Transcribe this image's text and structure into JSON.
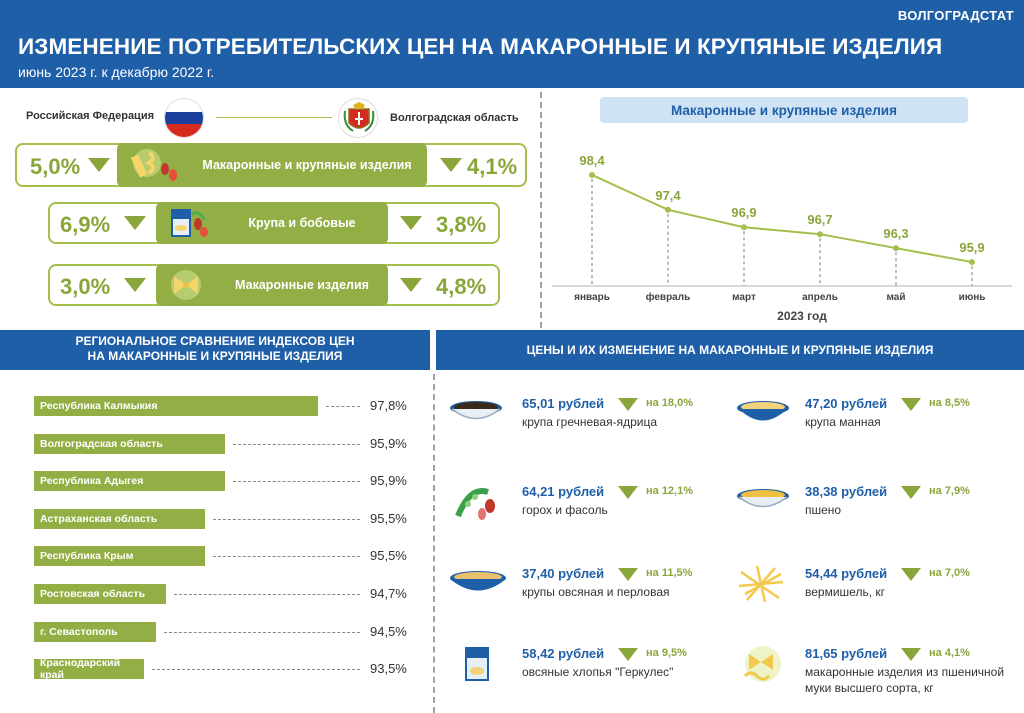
{
  "header": {
    "brand": "ВОЛГОГРАДСТАТ",
    "title": "ИЗМЕНЕНИЕ ПОТРЕБИТЕЛЬСКИХ ЦЕН НА МАКАРОННЫЕ И КРУПЯНЫЕ ИЗДЕЛИЯ",
    "subtitle": "июнь 2023 г. к декабрю 2022 г."
  },
  "comparison": {
    "left_label": "Российская Федерация",
    "right_label": "Волгоградская  область",
    "rows": [
      {
        "category": "Макаронные и крупяные изделия",
        "rf": "5,0%",
        "region": "4,1%"
      },
      {
        "category": "Крупа и бобовые",
        "rf": "6,9%",
        "region": "3,8%"
      },
      {
        "category": "Макаронные изделия",
        "rf": "3,0%",
        "region": "4,8%"
      }
    ]
  },
  "chart_data": [
    {
      "type": "line",
      "title": "Макаронные и крупяные изделия",
      "xlabel": "2023 год",
      "ylabel": "",
      "categories": [
        "январь",
        "февраль",
        "март",
        "апрель",
        "май",
        "июнь"
      ],
      "values": [
        98.4,
        97.4,
        96.9,
        96.7,
        96.3,
        95.9
      ],
      "value_labels": [
        "98,4",
        "97,4",
        "96,9",
        "96,7",
        "96,3",
        "95,9"
      ],
      "ylim": [
        95.5,
        98.6
      ],
      "color": "#a3bf4d"
    },
    {
      "type": "bar",
      "orientation": "horizontal",
      "title": "РЕГИОНАЛЬНОЕ  СРАВНЕНИЕ  ИНДЕКСОВ ЦЕН НА МАКАРОННЫЕ  И КРУПЯНЫЕ  ИЗДЕЛИЯ",
      "categories": [
        "Республика Калмыкия",
        "Волгоградская область",
        "Республика Адыгея",
        "Астраханская область",
        "Республика Крым",
        "Ростовская область",
        "г. Севастополь",
        "Краснодарский край"
      ],
      "values": [
        97.8,
        95.9,
        95.9,
        95.5,
        95.5,
        94.7,
        94.5,
        93.5
      ],
      "value_labels": [
        "97,8%",
        "95,9%",
        "95,9%",
        "95,5%",
        "95,5%",
        "94,7%",
        "94,5%",
        "93,5%"
      ],
      "color": "#93ae44"
    }
  ],
  "regional": {
    "title_line1": "РЕГИОНАЛЬНОЕ  СРАВНЕНИЕ  ИНДЕКСОВ ЦЕН",
    "title_line2": "НА МАКАРОННЫЕ  И КРУПЯНЫЕ  ИЗДЕЛИЯ"
  },
  "prices": {
    "title": "ЦЕНЫ И ИХ ИЗМЕНЕНИЕ НА МАКАРОННЫЕ  И КРУПЯНЫЕ ИЗДЕЛИЯ",
    "items": [
      {
        "price": "65,01 рублей",
        "change": "на 18,0%",
        "name": "крупа гречневая-ядрица",
        "icon": "buckwheat-bowl-icon"
      },
      {
        "price": "47,20 рублей",
        "change": "на 8,5%",
        "name": "крупа манная",
        "icon": "semolina-bowl-icon"
      },
      {
        "price": "64,21 рублей",
        "change": "на 12,1%",
        "name": "горох и фасоль",
        "icon": "peas-beans-icon"
      },
      {
        "price": "38,38 рублей",
        "change": "на 7,9%",
        "name": "пшено",
        "icon": "millet-bowl-icon"
      },
      {
        "price": "37,40 рублей",
        "change": "на 11,5%",
        "name": "крупы овсяная и перловая",
        "icon": "oat-bowl-icon"
      },
      {
        "price": "54,44 рублей",
        "change": "на 7,0%",
        "name": "вермишель, кг",
        "icon": "vermicelli-icon"
      },
      {
        "price": "58,42 рублей",
        "change": "на 9,5%",
        "name": "овсяные хлопья \"Геркулес\"",
        "icon": "oat-flakes-box-icon"
      },
      {
        "price": "81,65 рублей",
        "change": "на 4,1%",
        "name": "макаронные изделия из пшеничной муки высшего сорта, кг",
        "icon": "pasta-icon"
      }
    ]
  },
  "colors": {
    "blue": "#1f5fa8",
    "green": "#93ae44",
    "light_blue": "#cfe3f5"
  }
}
